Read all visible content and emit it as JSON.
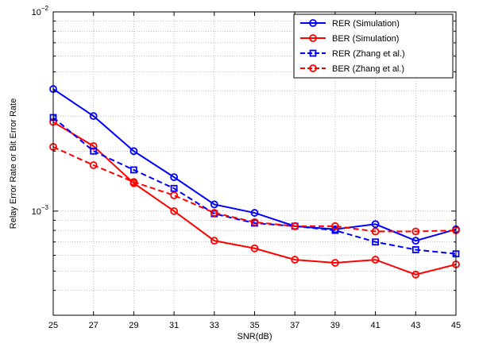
{
  "chart_data": {
    "type": "line",
    "title": "",
    "xlabel": "SNR(dB)",
    "ylabel": "Relay Error Rate or Bit Error Rate",
    "yscale": "log",
    "xlim": [
      25,
      45
    ],
    "ylim": [
      0.0003,
      0.01
    ],
    "grid": true,
    "legend_position": "top-right",
    "x_ticks": [
      25,
      27,
      29,
      31,
      33,
      35,
      37,
      39,
      41,
      43,
      45
    ],
    "x_tick_labels": [
      "25",
      "27",
      "29",
      "31",
      "33",
      "35",
      "37",
      "39",
      "41",
      "43",
      "45"
    ],
    "y_major_ticks": [
      {
        "value": 0.01,
        "base": "10",
        "exponent": "−2"
      },
      {
        "value": 0.001,
        "base": "10",
        "exponent": "−3"
      }
    ],
    "x": [
      25,
      27,
      29,
      31,
      33,
      35,
      37,
      39,
      41,
      43,
      45
    ],
    "series": [
      {
        "name": "RER (Simulation)",
        "color": "#0000ff",
        "dash": "solid",
        "marker": "circle",
        "values": [
          0.0041,
          0.003,
          0.002,
          0.00148,
          0.00108,
          0.00098,
          0.00084,
          0.00081,
          0.00086,
          0.00071,
          0.00081
        ]
      },
      {
        "name": "BER (Simulation)",
        "color": "#ff0000",
        "dash": "solid",
        "marker": "circle",
        "values": [
          0.0028,
          0.00212,
          0.00138,
          0.001,
          0.00071,
          0.00065,
          0.00057,
          0.00055,
          0.00057,
          0.00048,
          0.00054
        ]
      },
      {
        "name": "RER (Zhang et al.)",
        "color": "#0000ff",
        "dash": "dashed",
        "marker": "square",
        "values": [
          0.00295,
          0.002,
          0.00161,
          0.0013,
          0.00097,
          0.00087,
          0.00084,
          0.0008,
          0.0007,
          0.00064,
          0.00061
        ]
      },
      {
        "name": "BER (Zhang et al.)",
        "color": "#ff0000",
        "dash": "dashed",
        "marker": "circle",
        "values": [
          0.0021,
          0.0017,
          0.0014,
          0.0012,
          0.00098,
          0.00088,
          0.00084,
          0.00084,
          0.00079,
          0.00079,
          0.0008
        ]
      }
    ]
  }
}
